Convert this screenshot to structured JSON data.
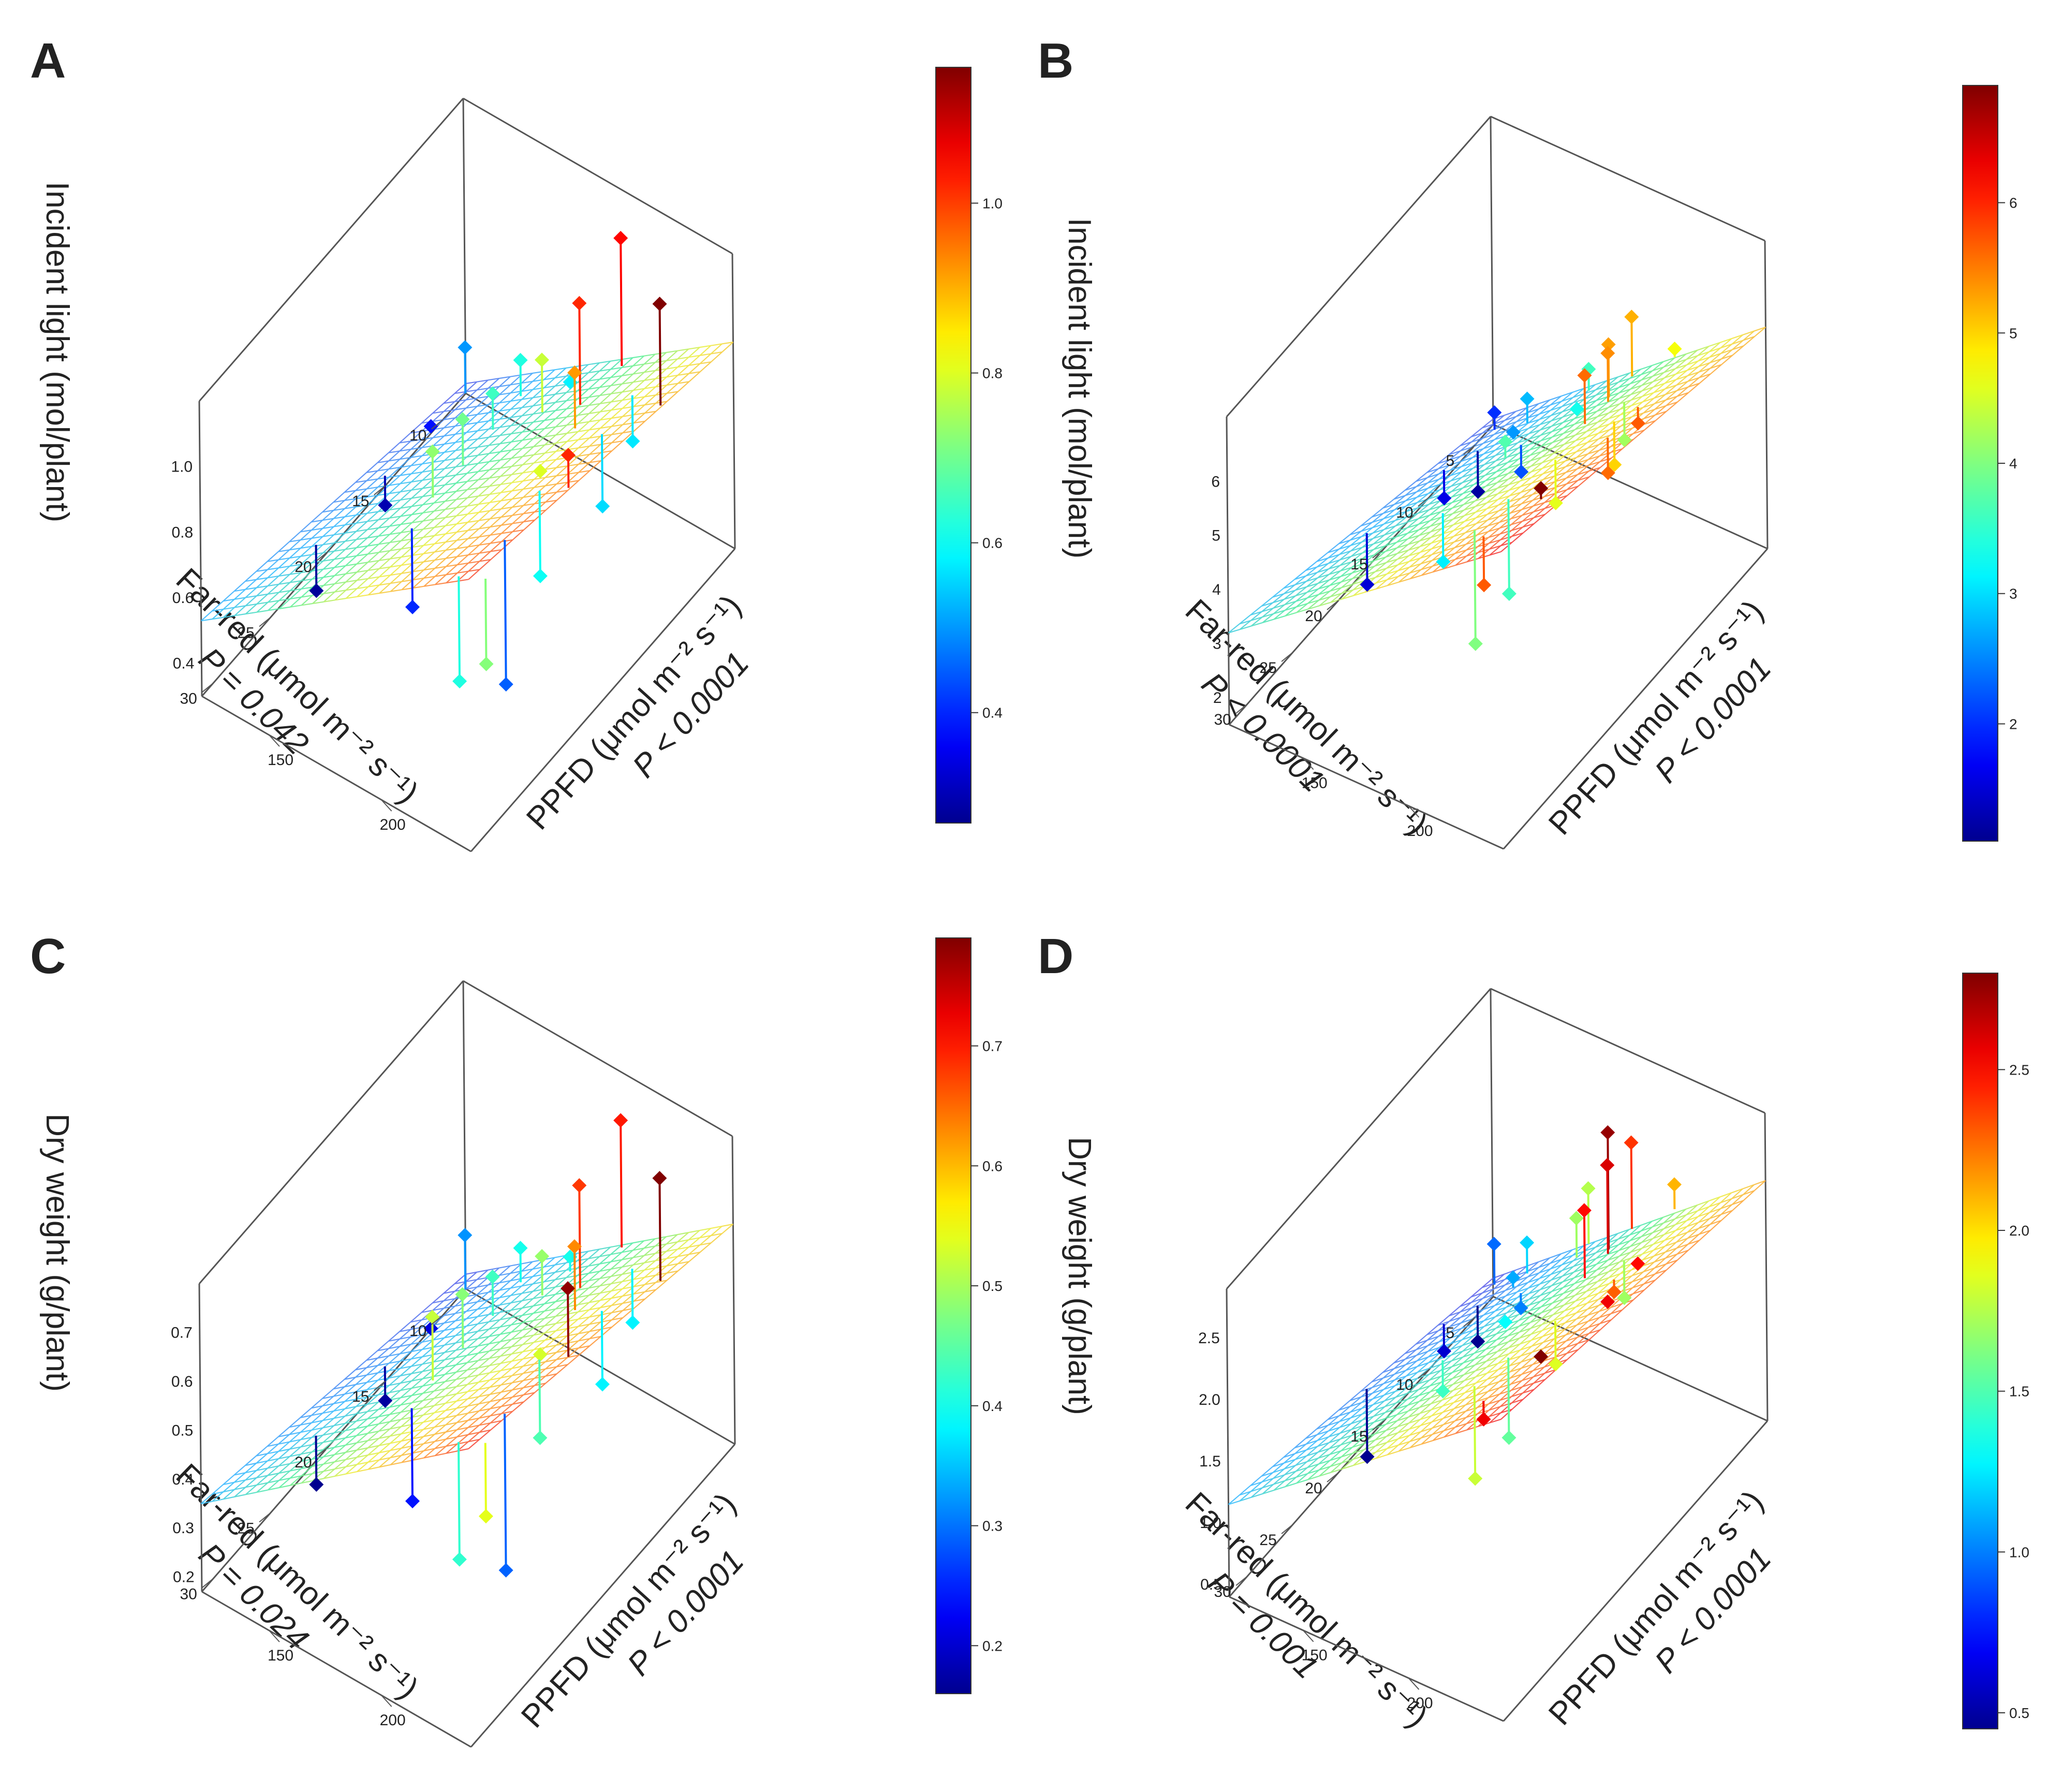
{
  "chart_data": [
    {
      "type": "surface3d",
      "panel_letter": "A",
      "zlabel": "Incident light (mol/plant)",
      "xlabel": "Far-red (μmol m⁻² s⁻¹)",
      "xlabel_p": "P = 0.042",
      "ylabel": "PPFD (μmol m⁻² s⁻¹)",
      "ylabel_p": "P < 0.0001",
      "x_range": [
        8,
        31
      ],
      "y_range": [
        120,
        240
      ],
      "z_range": [
        0.3,
        1.2
      ],
      "x_ticks": [
        10,
        15,
        20,
        25,
        30
      ],
      "y_ticks": [
        150,
        200
      ],
      "z_ticks": [
        0.4,
        0.6,
        0.8,
        1.0
      ],
      "z_tick_labels": [
        "0.4",
        "0.6",
        "0.8",
        "1.0"
      ],
      "surface": {
        "z00": 0.33,
        "z10": 0.53,
        "z01": 0.93,
        "z11": 1.13
      },
      "colorbar": {
        "range": [
          0.27,
          1.16
        ],
        "ticks": [
          "0.4",
          "0.6",
          "0.8",
          "1.0"
        ],
        "tick_values": [
          0.4,
          0.6,
          0.8,
          1.0
        ]
      },
      "points": [
        {
          "x": 9,
          "y": 125,
          "z": 0.5,
          "fit": 0.36
        },
        {
          "x": 12,
          "y": 125,
          "z": 0.38,
          "fit": 0.38
        },
        {
          "x": 16,
          "y": 125,
          "z": 0.3,
          "fit": 0.39
        },
        {
          "x": 22,
          "y": 125,
          "z": 0.28,
          "fit": 0.42
        },
        {
          "x": 10,
          "y": 155,
          "z": 0.62,
          "fit": 0.51
        },
        {
          "x": 13,
          "y": 158,
          "z": 0.65,
          "fit": 0.54
        },
        {
          "x": 16,
          "y": 160,
          "z": 0.7,
          "fit": 0.56
        },
        {
          "x": 19,
          "y": 162,
          "z": 0.73,
          "fit": 0.59
        },
        {
          "x": 9,
          "y": 172,
          "z": 0.58,
          "fit": 0.56
        },
        {
          "x": 12,
          "y": 175,
          "z": 0.78,
          "fit": 0.62
        },
        {
          "x": 22,
          "y": 168,
          "z": 0.4,
          "fit": 0.64
        },
        {
          "x": 8,
          "y": 190,
          "z": 1.05,
          "fit": 0.66
        },
        {
          "x": 12,
          "y": 192,
          "z": 1.02,
          "fit": 0.71
        },
        {
          "x": 14,
          "y": 200,
          "z": 0.92,
          "fit": 0.75
        },
        {
          "x": 18,
          "y": 205,
          "z": 0.8,
          "fit": 0.79
        },
        {
          "x": 10,
          "y": 205,
          "z": 0.57,
          "fit": 0.71
        },
        {
          "x": 14,
          "y": 212,
          "z": 0.56,
          "fit": 0.78
        },
        {
          "x": 24,
          "y": 220,
          "z": 0.45,
          "fit": 0.89
        },
        {
          "x": 12,
          "y": 228,
          "z": 1.16,
          "fit": 0.85
        },
        {
          "x": 20,
          "y": 228,
          "z": 1.02,
          "fit": 0.92
        },
        {
          "x": 20,
          "y": 215,
          "z": 0.6,
          "fit": 0.86
        },
        {
          "x": 28,
          "y": 232,
          "z": 0.72,
          "fit": 0.98
        },
        {
          "x": 28,
          "y": 220,
          "z": 0.62,
          "fit": 0.94
        }
      ]
    },
    {
      "type": "surface3d",
      "panel_letter": "B",
      "zlabel": "Incident light (mol/plant)",
      "xlabel": "Far-red (μmol m⁻² s⁻¹)",
      "xlabel_p": "P < 0.0001",
      "ylabel": "PPFD (μmol m⁻² s⁻¹)",
      "ylabel_p": "P < 0.0001",
      "x_range": [
        3,
        32
      ],
      "y_range": [
        115,
        245
      ],
      "z_range": [
        1.5,
        7.2
      ],
      "x_ticks": [
        5,
        10,
        15,
        20,
        25,
        30
      ],
      "y_ticks": [
        150,
        200
      ],
      "z_ticks": [
        2,
        3,
        4,
        5,
        6
      ],
      "z_tick_labels": [
        "2",
        "3",
        "4",
        "5",
        "6"
      ],
      "surface": {
        "z00": 1.6,
        "z10": 3.2,
        "z01": 5.6,
        "z11": 7.0
      },
      "colorbar": {
        "range": [
          1.1,
          6.9
        ],
        "ticks": [
          "2",
          "3",
          "4",
          "5",
          "6"
        ],
        "tick_values": [
          2,
          3,
          4,
          5,
          6
        ]
      },
      "points": [
        {
          "x": 4,
          "y": 120,
          "z": 2.0,
          "fit": 1.68
        },
        {
          "x": 7,
          "y": 125,
          "z": 1.2,
          "fit": 1.95
        },
        {
          "x": 10,
          "y": 122,
          "z": 1.6,
          "fit": 2.12
        },
        {
          "x": 18,
          "y": 120,
          "z": 1.5,
          "fit": 2.45
        },
        {
          "x": 5,
          "y": 140,
          "z": 2.8,
          "fit": 2.35
        },
        {
          "x": 7,
          "y": 142,
          "z": 2.6,
          "fit": 2.52
        },
        {
          "x": 8,
          "y": 150,
          "z": 2.2,
          "fit": 2.7
        },
        {
          "x": 12,
          "y": 160,
          "z": 3.7,
          "fit": 3.4
        },
        {
          "x": 4,
          "y": 165,
          "z": 3.6,
          "fit": 3.2
        },
        {
          "x": 6,
          "y": 168,
          "z": 3.3,
          "fit": 3.38
        },
        {
          "x": 20,
          "y": 165,
          "z": 3.1,
          "fit": 4.0
        },
        {
          "x": 5,
          "y": 190,
          "z": 5.2,
          "fit": 4.1
        },
        {
          "x": 8,
          "y": 192,
          "z": 5.3,
          "fit": 4.32
        },
        {
          "x": 9,
          "y": 196,
          "z": 5.4,
          "fit": 4.5
        },
        {
          "x": 12,
          "y": 198,
          "z": 5.6,
          "fit": 4.7
        },
        {
          "x": 4,
          "y": 206,
          "z": 4.7,
          "fit": 4.55
        },
        {
          "x": 10,
          "y": 208,
          "z": 4.2,
          "fit": 4.9
        },
        {
          "x": 18,
          "y": 210,
          "z": 4.6,
          "fit": 5.4
        },
        {
          "x": 22,
          "y": 205,
          "z": 3.6,
          "fit": 5.35
        },
        {
          "x": 15,
          "y": 225,
          "z": 5.0,
          "fit": 5.8
        },
        {
          "x": 14,
          "y": 232,
          "z": 5.7,
          "fit": 6.0
        },
        {
          "x": 18,
          "y": 235,
          "z": 5.6,
          "fit": 6.25
        },
        {
          "x": 26,
          "y": 238,
          "z": 6.9,
          "fit": 6.7
        },
        {
          "x": 30,
          "y": 228,
          "z": 5.7,
          "fit": 6.6
        },
        {
          "x": 28,
          "y": 215,
          "z": 4.0,
          "fit": 6.1
        }
      ]
    },
    {
      "type": "surface3d",
      "panel_letter": "C",
      "zlabel": "Dry weight (g/plant)",
      "xlabel": "Far-red (μmol m⁻² s⁻¹)",
      "xlabel_p": "P = 0.024",
      "ylabel": "PPFD (μmol m⁻² s⁻¹)",
      "ylabel_p": "P < 0.0001",
      "x_range": [
        8,
        31
      ],
      "y_range": [
        120,
        240
      ],
      "z_range": [
        0.17,
        0.8
      ],
      "x_ticks": [
        10,
        15,
        20,
        25,
        30
      ],
      "y_ticks": [
        150,
        200
      ],
      "z_ticks": [
        0.2,
        0.3,
        0.4,
        0.5,
        0.6,
        0.7
      ],
      "z_tick_labels": [
        "0.2",
        "0.3",
        "0.4",
        "0.5",
        "0.6",
        "0.7"
      ],
      "surface": {
        "z00": 0.2,
        "z10": 0.35,
        "z01": 0.62,
        "z11": 0.78
      },
      "colorbar": {
        "range": [
          0.16,
          0.79
        ],
        "ticks": [
          "0.2",
          "0.3",
          "0.4",
          "0.5",
          "0.6",
          "0.7"
        ],
        "tick_values": [
          0.2,
          0.3,
          0.4,
          0.5,
          0.6,
          0.7
        ]
      },
      "points": [
        {
          "x": 9,
          "y": 125,
          "z": 0.32,
          "fit": 0.21
        },
        {
          "x": 12,
          "y": 125,
          "z": 0.21,
          "fit": 0.23
        },
        {
          "x": 16,
          "y": 125,
          "z": 0.17,
          "fit": 0.24
        },
        {
          "x": 22,
          "y": 125,
          "z": 0.16,
          "fit": 0.26
        },
        {
          "x": 10,
          "y": 155,
          "z": 0.4,
          "fit": 0.33
        },
        {
          "x": 13,
          "y": 158,
          "z": 0.43,
          "fit": 0.35
        },
        {
          "x": 16,
          "y": 160,
          "z": 0.48,
          "fit": 0.37
        },
        {
          "x": 19,
          "y": 162,
          "z": 0.52,
          "fit": 0.39
        },
        {
          "x": 9,
          "y": 172,
          "z": 0.4,
          "fit": 0.37
        },
        {
          "x": 12,
          "y": 175,
          "z": 0.49,
          "fit": 0.41
        },
        {
          "x": 22,
          "y": 168,
          "z": 0.24,
          "fit": 0.43
        },
        {
          "x": 8,
          "y": 190,
          "z": 0.7,
          "fit": 0.44
        },
        {
          "x": 12,
          "y": 192,
          "z": 0.68,
          "fit": 0.47
        },
        {
          "x": 14,
          "y": 200,
          "z": 0.63,
          "fit": 0.5
        },
        {
          "x": 18,
          "y": 205,
          "z": 0.53,
          "fit": 0.54
        },
        {
          "x": 10,
          "y": 205,
          "z": 0.38,
          "fit": 0.49
        },
        {
          "x": 14,
          "y": 212,
          "z": 0.38,
          "fit": 0.53
        },
        {
          "x": 24,
          "y": 220,
          "z": 0.29,
          "fit": 0.61
        },
        {
          "x": 12,
          "y": 228,
          "z": 0.79,
          "fit": 0.58
        },
        {
          "x": 20,
          "y": 228,
          "z": 0.78,
          "fit": 0.64
        },
        {
          "x": 20,
          "y": 215,
          "z": 0.44,
          "fit": 0.6
        },
        {
          "x": 28,
          "y": 232,
          "z": 0.54,
          "fit": 0.69
        },
        {
          "x": 28,
          "y": 220,
          "z": 0.42,
          "fit": 0.66
        }
      ]
    },
    {
      "type": "surface3d",
      "panel_letter": "D",
      "zlabel": "Dry weight (g/plant)",
      "xlabel": "Far-red (μmol m⁻² s⁻¹)",
      "xlabel_p": "P = 0.001",
      "ylabel": "PPFD (μmol m⁻² s⁻¹)",
      "ylabel_p": "P < 0.0001",
      "x_range": [
        3,
        32
      ],
      "y_range": [
        115,
        245
      ],
      "z_range": [
        0.4,
        2.9
      ],
      "x_ticks": [
        5,
        10,
        15,
        20,
        25,
        30
      ],
      "y_ticks": [
        150,
        200
      ],
      "z_ticks": [
        0.5,
        1.0,
        1.5,
        2.0,
        2.5
      ],
      "z_tick_labels": [
        "0.5",
        "1.0",
        "1.5",
        "2.0",
        "2.5"
      ],
      "surface": {
        "z00": 0.55,
        "z10": 1.15,
        "z01": 2.35,
        "z11": 2.85
      },
      "colorbar": {
        "range": [
          0.45,
          2.8
        ],
        "ticks": [
          "0.5",
          "1.0",
          "1.5",
          "2.0",
          "2.5"
        ],
        "tick_values": [
          0.5,
          1.0,
          1.5,
          2.0,
          2.5
        ]
      },
      "points": [
        {
          "x": 4,
          "y": 120,
          "z": 0.95,
          "fit": 0.62
        },
        {
          "x": 7,
          "y": 125,
          "z": 0.45,
          "fit": 0.74
        },
        {
          "x": 10,
          "y": 122,
          "z": 0.6,
          "fit": 0.82
        },
        {
          "x": 18,
          "y": 120,
          "z": 0.4,
          "fit": 0.95
        },
        {
          "x": 5,
          "y": 140,
          "z": 1.2,
          "fit": 0.95
        },
        {
          "x": 7,
          "y": 142,
          "z": 1.1,
          "fit": 1.02
        },
        {
          "x": 8,
          "y": 150,
          "z": 1.0,
          "fit": 1.12
        },
        {
          "x": 12,
          "y": 160,
          "z": 1.3,
          "fit": 1.35
        },
        {
          "x": 4,
          "y": 165,
          "z": 1.75,
          "fit": 1.3
        },
        {
          "x": 6,
          "y": 168,
          "z": 1.7,
          "fit": 1.38
        },
        {
          "x": 20,
          "y": 165,
          "z": 1.45,
          "fit": 1.7
        },
        {
          "x": 5,
          "y": 190,
          "z": 2.4,
          "fit": 1.7
        },
        {
          "x": 8,
          "y": 192,
          "z": 2.75,
          "fit": 1.8
        },
        {
          "x": 9,
          "y": 196,
          "z": 2.6,
          "fit": 1.88
        },
        {
          "x": 12,
          "y": 198,
          "z": 2.5,
          "fit": 1.95
        },
        {
          "x": 4,
          "y": 206,
          "z": 2.1,
          "fit": 1.9
        },
        {
          "x": 10,
          "y": 208,
          "z": 1.7,
          "fit": 2.0
        },
        {
          "x": 18,
          "y": 210,
          "z": 1.85,
          "fit": 2.2
        },
        {
          "x": 22,
          "y": 205,
          "z": 1.55,
          "fit": 2.2
        },
        {
          "x": 15,
          "y": 225,
          "z": 2.3,
          "fit": 2.4
        },
        {
          "x": 14,
          "y": 232,
          "z": 2.5,
          "fit": 2.45
        },
        {
          "x": 18,
          "y": 235,
          "z": 2.55,
          "fit": 2.55
        },
        {
          "x": 26,
          "y": 238,
          "z": 2.8,
          "fit": 2.75
        },
        {
          "x": 30,
          "y": 228,
          "z": 2.55,
          "fit": 2.7
        },
        {
          "x": 28,
          "y": 215,
          "z": 1.8,
          "fit": 2.55
        }
      ]
    }
  ]
}
